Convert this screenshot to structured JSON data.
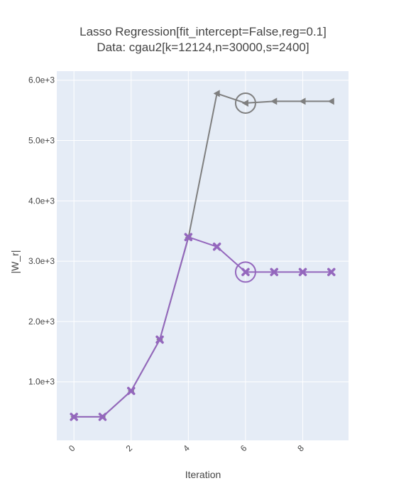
{
  "chart_data": {
    "type": "line",
    "title": "Lasso Regression[fit_intercept=False,reg=0.1]",
    "subtitle": "Data: cgau2[k=12124,n=30000,s=2400]",
    "xlabel": "Iteration",
    "ylabel": "|W_r|",
    "x": [
      0,
      1,
      2,
      3,
      4,
      5,
      6,
      7,
      8,
      9
    ],
    "x_ticks": [
      0,
      2,
      4,
      6,
      8
    ],
    "x_tick_labels": [
      "0",
      "2",
      "4",
      "6",
      "8"
    ],
    "xlim": [
      -0.6,
      9.6
    ],
    "y_ticks": [
      1000,
      2000,
      3000,
      4000,
      5000,
      6000
    ],
    "y_tick_labels": [
      "1.0e+3",
      "2.0e+3",
      "3.0e+3",
      "4.0e+3",
      "5.0e+3",
      "6.0e+3"
    ],
    "ylim": [
      30,
      6150
    ],
    "grid": true,
    "plot_background": "#e5ecf6",
    "series": [
      {
        "x": [
          0,
          1,
          2,
          3,
          4,
          5,
          6,
          7,
          8,
          9
        ],
        "values": [
          420,
          420,
          850,
          1700,
          3390,
          5780,
          5620,
          5650,
          5650,
          5650
        ],
        "color": "#7f7f7f",
        "marker": "triangle-left",
        "highlight_index": 6
      },
      {
        "x": [
          0,
          1,
          2,
          3,
          4,
          5,
          6,
          7,
          8,
          9
        ],
        "values": [
          420,
          420,
          850,
          1700,
          3400,
          3240,
          2820,
          2820,
          2820,
          2820
        ],
        "color": "#9467bd",
        "marker": "x",
        "highlight_index": 6
      }
    ]
  }
}
